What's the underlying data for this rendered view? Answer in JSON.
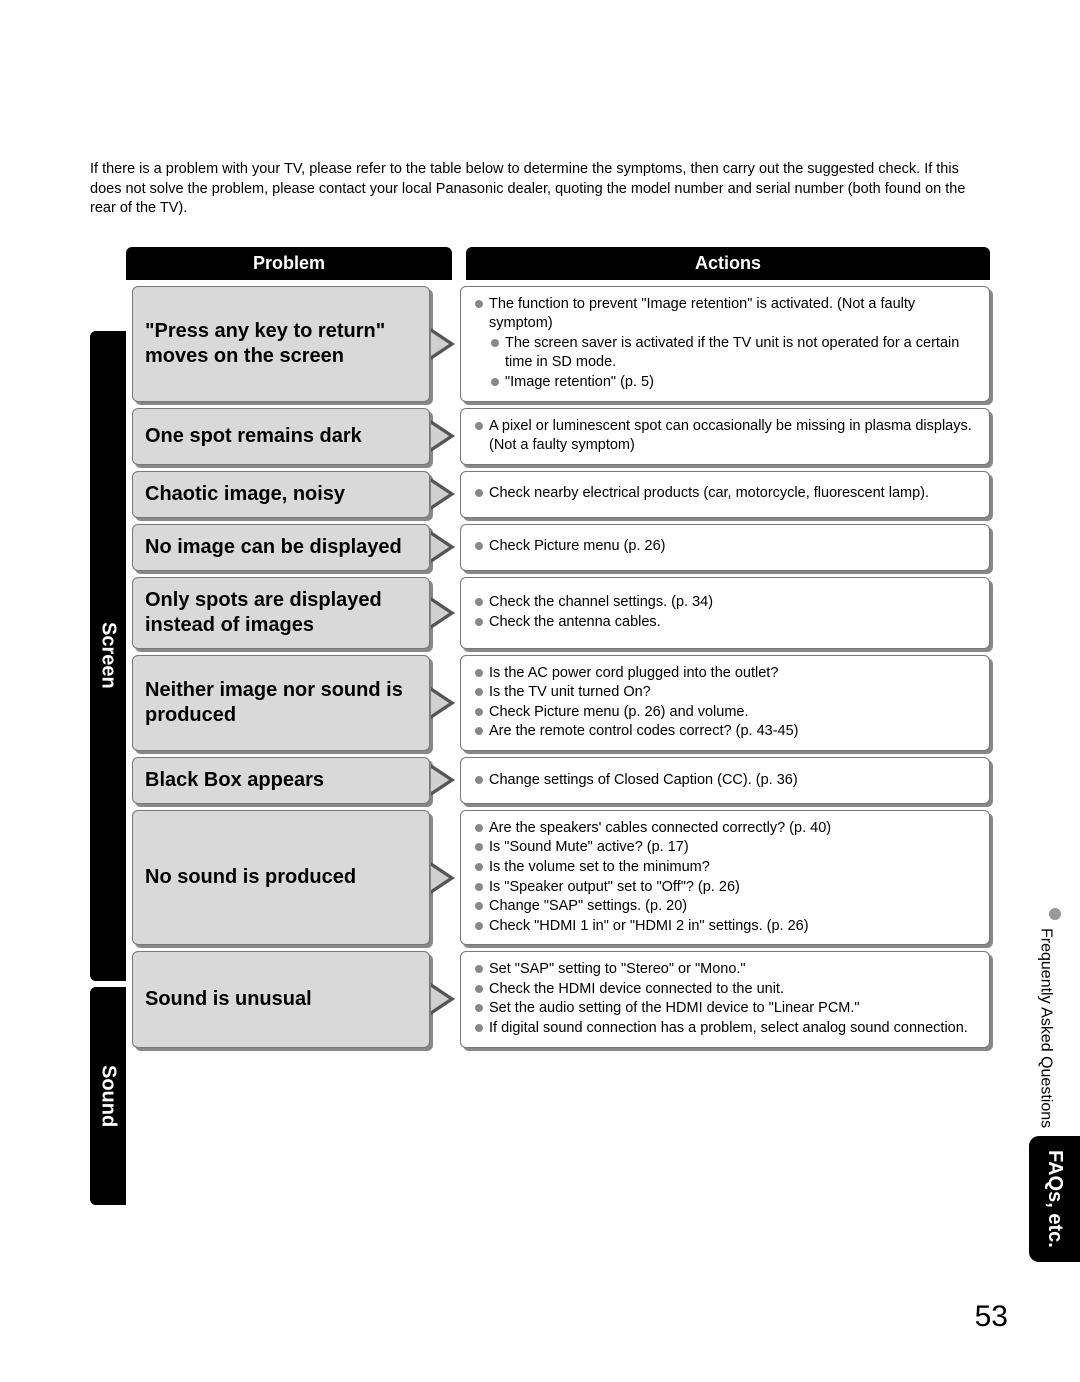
{
  "intro": "If there is a problem with your TV, please refer to the table below to determine the symptoms, then carry out the suggested check. If this does not solve the problem, please contact your local Panasonic dealer, quoting the model number and serial number (both found on the rear of the TV).",
  "headers": {
    "problem": "Problem",
    "actions": "Actions"
  },
  "sideLabels": {
    "screen": "Screen",
    "sound": "Sound"
  },
  "screenRows": [
    {
      "problem": "\"Press any key to return\" moves on the screen",
      "actions": [
        "The function to prevent \"Image retention\" is activated. (Not a faulty symptom)",
        "The screen saver is activated if the TV unit is not operated for a certain time in SD mode.",
        "\"Image retention\" (p. 5)"
      ],
      "indent": [
        false,
        true,
        true
      ]
    },
    {
      "problem": "One spot remains dark",
      "actions": [
        "A pixel or luminescent spot can occasionally be missing in plasma displays. (Not a faulty symptom)"
      ]
    },
    {
      "problem": "Chaotic image, noisy",
      "actions": [
        "Check nearby electrical products (car, motorcycle, fluorescent lamp)."
      ]
    },
    {
      "problem": "No image can be displayed",
      "actions": [
        "Check Picture menu (p. 26)"
      ]
    },
    {
      "problem": "Only spots are displayed instead of images",
      "actions": [
        "Check the channel settings. (p. 34)",
        "Check the antenna cables."
      ]
    },
    {
      "problem": "Neither image nor sound is produced",
      "actions": [
        "Is the AC power cord plugged into the outlet?",
        "Is the TV unit turned On?",
        "Check Picture menu (p. 26) and volume.",
        "Are the remote control codes correct? (p. 43-45)"
      ]
    },
    {
      "problem": "Black Box appears",
      "actions": [
        "Change settings of Closed Caption (CC). (p. 36)"
      ]
    }
  ],
  "soundRows": [
    {
      "problem": "No sound is produced",
      "actions": [
        "Are the speakers' cables connected correctly? (p. 40)",
        "Is \"Sound Mute\" active? (p. 17)",
        "Is the volume set to the minimum?",
        "Is \"Speaker output\" set to \"Off\"? (p. 26)",
        "Change \"SAP\" settings. (p. 20)",
        "Check \"HDMI 1 in\" or \"HDMI 2 in\" settings. (p. 26)"
      ]
    },
    {
      "problem": "Sound is unusual",
      "actions": [
        "Set \"SAP\" setting to \"Stereo\" or \"Mono.\"",
        "Check the HDMI device connected to the unit.",
        "Set the audio setting of the HDMI device to \"Linear PCM.\"",
        "If digital sound connection has a problem, select analog sound connection."
      ]
    }
  ],
  "rightTab": {
    "line1": "Frequently Asked Questions",
    "line2": "FAQs, etc."
  },
  "pageNumber": "53",
  "colors": {
    "headerBg": "#000000",
    "headerText": "#ffffff",
    "problemBg": "#d9d9d9",
    "border": "#777777",
    "shadow": "#888888",
    "bullet": "#888888"
  }
}
